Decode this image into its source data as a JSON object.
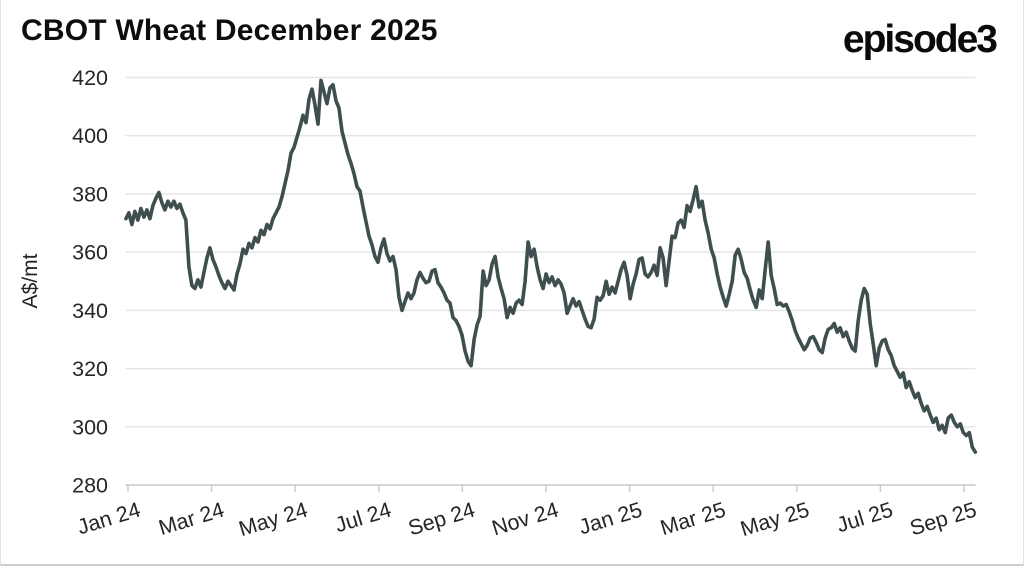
{
  "card": {
    "title": "CBOT Wheat December 2025",
    "brand_logo": "episode3"
  },
  "colors": {
    "line": "#3f4e4e",
    "grid": "#e4e4e4",
    "axis": "#c8c8c8",
    "tick_text": "#262626",
    "title_text": "#0d0d0d",
    "background": "#ffffff",
    "border": "#cfcfcf"
  },
  "chart_data": {
    "type": "line",
    "title": "CBOT Wheat December 2025",
    "ylabel": "A$/mt",
    "ylim": [
      280,
      420
    ],
    "yticks": [
      280,
      300,
      320,
      340,
      360,
      380,
      400,
      420
    ],
    "grid": "horizontal-only",
    "legend": "none",
    "x_axis": {
      "unit": "months",
      "tick_labels": [
        "Jan 24",
        "Mar 24",
        "May 24",
        "Jul 24",
        "Sep 24",
        "Nov 24",
        "Jan 25",
        "Mar 25",
        "May 25",
        "Jul 25",
        "Sep 25"
      ],
      "tick_positions_months_from_jan24": [
        0,
        2,
        4,
        6,
        8,
        10,
        12,
        14,
        16,
        18,
        20
      ],
      "label_rotation_deg": -17
    },
    "series": [
      {
        "name": "CBOT Wheat December 2025 price",
        "unit": "A$/mt",
        "color": "#3f4e4e",
        "x_start_months_from_jan24": -0.05,
        "x_step_months": 0.0718,
        "values": [
          371.5,
          373.5,
          369.5,
          374,
          371,
          375,
          372,
          374.5,
          371.5,
          376,
          378.5,
          380.5,
          377,
          374.5,
          377.5,
          375.5,
          377.5,
          375,
          376.5,
          373.5,
          371,
          355,
          348.5,
          347.5,
          350.5,
          348,
          353,
          358,
          361.5,
          357.5,
          355,
          352,
          349.5,
          347.5,
          350,
          348.5,
          347,
          352.5,
          356,
          361,
          359.5,
          363,
          361.5,
          365,
          363.5,
          367.5,
          366,
          369.5,
          368,
          371.5,
          373.5,
          375.5,
          379,
          383.5,
          388,
          394,
          396,
          399.5,
          403,
          407,
          404.5,
          412.5,
          416,
          410.5,
          404,
          419,
          415,
          411,
          416.5,
          417.5,
          412,
          409.5,
          401.5,
          397.5,
          393.5,
          390.5,
          387,
          382.5,
          381,
          375.5,
          370.5,
          365.5,
          362.5,
          358.5,
          356.5,
          361.5,
          364.5,
          359.5,
          357,
          358.5,
          354,
          344.5,
          340,
          343,
          346,
          344,
          346,
          350.5,
          353,
          351,
          349.5,
          350,
          353.5,
          354,
          349.5,
          348,
          346,
          343.5,
          342.5,
          337.5,
          336.5,
          334.5,
          331.5,
          326,
          322.5,
          321,
          330,
          335,
          338,
          353.5,
          348.5,
          350.5,
          356,
          358.5,
          351.5,
          347.5,
          344,
          337.5,
          341,
          339,
          342.5,
          343.5,
          342,
          350,
          363.5,
          358.5,
          361,
          355,
          350.5,
          347.5,
          352.5,
          349.5,
          351.5,
          348.5,
          350.5,
          349,
          346,
          339,
          341.5,
          344,
          341.5,
          343,
          340,
          337,
          334.5,
          334,
          337,
          344.5,
          343.5,
          345,
          350,
          345.5,
          348,
          346,
          350,
          354,
          356.5,
          352,
          344,
          349,
          352.5,
          357.5,
          358,
          352.5,
          351.5,
          353,
          355.5,
          352,
          361.5,
          358,
          348.5,
          357,
          365.5,
          365,
          370,
          371,
          368.5,
          376,
          374,
          378,
          382.5,
          375.5,
          377.5,
          371,
          366.5,
          361,
          358,
          352.5,
          348,
          344.5,
          341.5,
          345.5,
          350,
          359,
          361,
          357.5,
          353,
          351,
          347,
          343.5,
          341,
          347,
          344,
          354,
          363.5,
          352,
          347.5,
          342,
          342.5,
          341.5,
          342,
          339.5,
          336.5,
          333,
          330.5,
          328.5,
          326.5,
          328,
          330.5,
          331,
          329,
          326.5,
          325.5,
          330.5,
          333.5,
          334,
          335.5,
          332.5,
          334,
          331,
          332.5,
          329.5,
          327,
          326,
          336.5,
          343.5,
          347.5,
          345.5,
          335.5,
          328.5,
          321,
          327,
          329.5,
          330,
          326.5,
          324.5,
          321,
          319,
          317,
          318.5,
          313.5,
          315.5,
          312.5,
          310,
          311.5,
          308,
          305.5,
          307,
          304,
          301.5,
          303,
          299,
          300.5,
          298,
          303,
          304,
          301.5,
          300,
          301,
          298,
          297,
          298,
          293,
          291.3
        ]
      }
    ]
  }
}
